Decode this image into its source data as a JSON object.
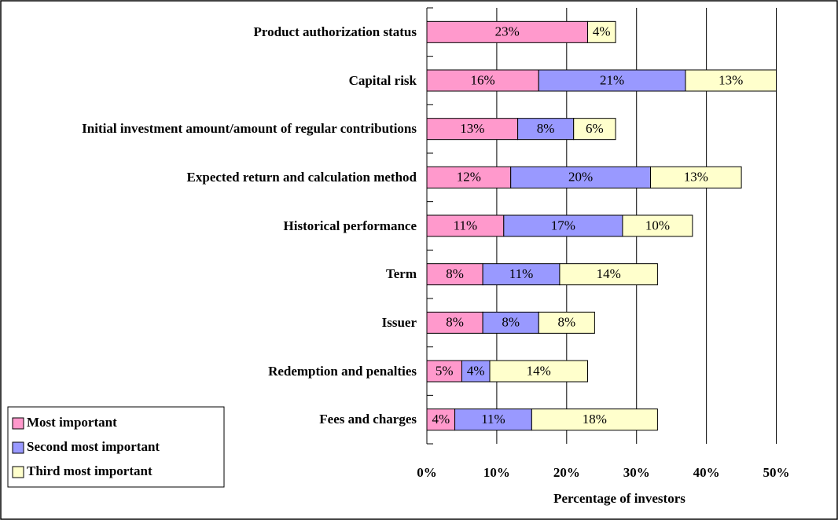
{
  "chart_data": {
    "type": "stacked_barh",
    "x_label": "Percentage of investors",
    "categories": [
      "Product authorization status",
      "Capital risk",
      "Initial investment amount/amount of regular contributions",
      "Expected return and calculation method",
      "Historical performance",
      "Term",
      "Issuer",
      "Redemption and penalties",
      "Fees and charges"
    ],
    "series": [
      {
        "name": "Most important",
        "color": "#ff99cc",
        "values": [
          23,
          16,
          13,
          12,
          11,
          8,
          8,
          5,
          4
        ],
        "value_labels": [
          "23%",
          "16%",
          "13%",
          "12%",
          "11%",
          "8%",
          "8%",
          "5%",
          "4%"
        ]
      },
      {
        "name": "Second most important",
        "color": "#9999ff",
        "values": [
          null,
          21,
          8,
          20,
          17,
          11,
          8,
          4,
          11
        ],
        "value_labels": [
          null,
          "21%",
          "8%",
          "20%",
          "17%",
          "11%",
          "8%",
          "4%",
          "11%"
        ]
      },
      {
        "name": "Third most important",
        "color": "#ffffcc",
        "values": [
          4,
          13,
          6,
          13,
          10,
          14,
          8,
          14,
          18
        ],
        "value_labels": [
          "4%",
          "13%",
          "6%",
          "13%",
          "10%",
          "14%",
          "8%",
          "14%",
          "18%"
        ]
      }
    ],
    "xlim": [
      0,
      55
    ],
    "xticks": [
      {
        "value": 0,
        "label": "0%"
      },
      {
        "value": 10,
        "label": "10%"
      },
      {
        "value": 20,
        "label": "20%"
      },
      {
        "value": 30,
        "label": "30%"
      },
      {
        "value": 40,
        "label": "40%"
      },
      {
        "value": 50,
        "label": "50%"
      }
    ],
    "grid": true,
    "legend": "lower left"
  }
}
